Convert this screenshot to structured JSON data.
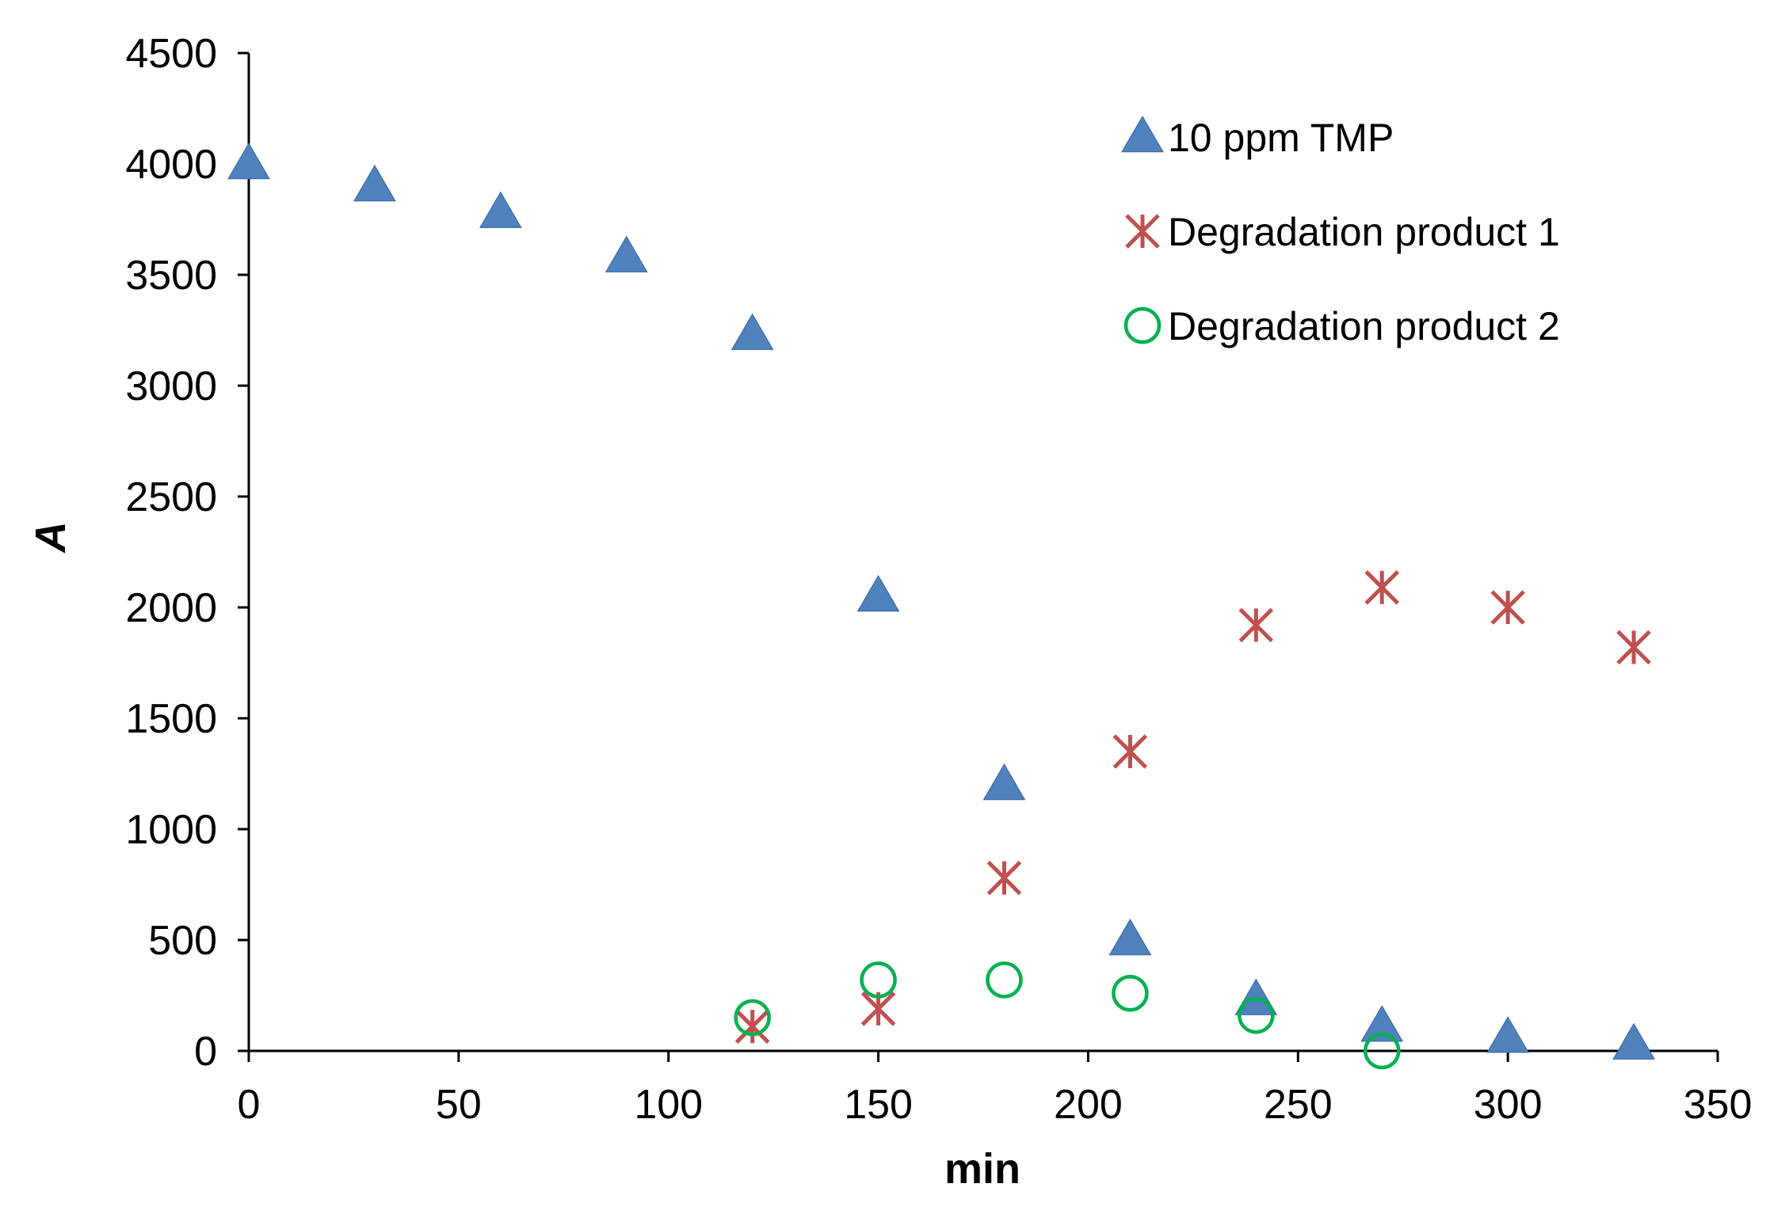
{
  "chart_data": {
    "type": "scatter",
    "title": "",
    "xlabel": "min",
    "ylabel": "A",
    "xlim": [
      0,
      350
    ],
    "ylim": [
      0,
      4500
    ],
    "xticks": [
      0,
      50,
      100,
      150,
      200,
      250,
      300,
      350
    ],
    "yticks": [
      0,
      500,
      1000,
      1500,
      2000,
      2500,
      3000,
      3500,
      4000,
      4500
    ],
    "grid": false,
    "legend_position": "top-right",
    "series": [
      {
        "name": "10 ppm TMP",
        "marker": "triangle",
        "color": "#4F81BD",
        "x": [
          0,
          30,
          60,
          90,
          120,
          150,
          180,
          210,
          240,
          270,
          300,
          330
        ],
        "y": [
          4000,
          3900,
          3780,
          3580,
          3230,
          2050,
          1200,
          500,
          230,
          110,
          60,
          30
        ]
      },
      {
        "name": "Degradation product 1",
        "marker": "star-x",
        "color": "#C0504D",
        "x": [
          120,
          150,
          180,
          210,
          240,
          270,
          300,
          330
        ],
        "y": [
          110,
          190,
          780,
          1350,
          1920,
          2090,
          2000,
          1820
        ]
      },
      {
        "name": "Degradation product 2",
        "marker": "circle-open",
        "color": "#00B050",
        "x": [
          120,
          150,
          180,
          210,
          240,
          270
        ],
        "y": [
          150,
          320,
          320,
          260,
          160,
          0
        ]
      }
    ]
  }
}
